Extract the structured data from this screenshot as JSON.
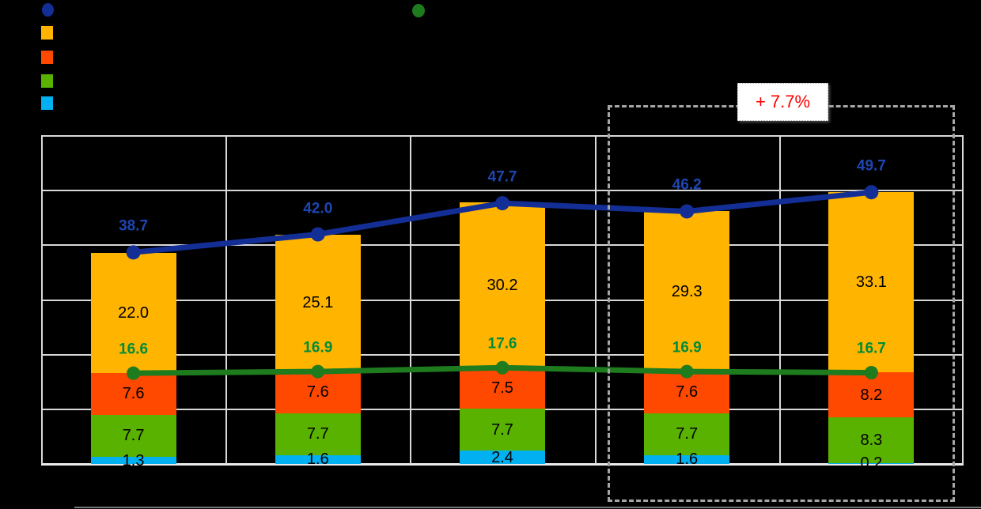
{
  "chart_data": {
    "type": "bar",
    "subtype": "stacked-bars-with-line-overlays",
    "categories": [
      "",
      "",
      "",
      "",
      ""
    ],
    "stack_series": [
      {
        "name": "segment-bottom-cyan",
        "color": "#00B0F0",
        "values": [
          1.3,
          1.6,
          2.4,
          1.6,
          0.2
        ]
      },
      {
        "name": "segment-green",
        "color": "#59B200",
        "values": [
          7.7,
          7.7,
          7.7,
          7.7,
          8.3
        ]
      },
      {
        "name": "segment-red",
        "color": "#FF4800",
        "values": [
          7.6,
          7.6,
          7.5,
          7.6,
          8.2
        ]
      },
      {
        "name": "segment-top-amber",
        "color": "#FFB400",
        "values": [
          22.0,
          25.1,
          30.2,
          29.3,
          33.1
        ]
      }
    ],
    "line_series": [
      {
        "name": "total-line-blue",
        "color": "#132F96",
        "label_color": "#1E46B2",
        "marker_radius": 9,
        "values": [
          38.7,
          42.0,
          47.7,
          46.2,
          49.7
        ]
      },
      {
        "name": "subtotal-line-green",
        "color": "#1E7B1E",
        "label_color": "#008C3A",
        "marker_radius": 8.5,
        "values": [
          16.6,
          16.9,
          17.6,
          16.9,
          16.7
        ]
      }
    ],
    "ylim": [
      0,
      60
    ],
    "grid_step": 10,
    "grid": true,
    "axis_tick_labels_visible": false,
    "annotation": {
      "text": "+ 7.7%",
      "color": "#FF0000"
    },
    "highlight": {
      "type": "dashed-box",
      "covers_categories": [
        4,
        5
      ],
      "color": "#A6A6A6"
    },
    "legend": {
      "position": "top-left",
      "entries": [
        {
          "marker": "circle",
          "color": "#132F96",
          "label": ""
        },
        {
          "marker": "square",
          "color": "#FFB400",
          "label": ""
        },
        {
          "marker": "square",
          "color": "#FF4800",
          "label": ""
        },
        {
          "marker": "square",
          "color": "#59B200",
          "label": ""
        },
        {
          "marker": "square",
          "color": "#00B0F0",
          "label": ""
        }
      ],
      "secondary_entry": {
        "marker": "circle",
        "color": "#1E7B1E",
        "label": "",
        "position": "top-center"
      }
    },
    "colors": {
      "background": "#000000",
      "gridline": "#D9D9D9",
      "baseline": "#ECECEC",
      "dashed_box": "#A6A6A6",
      "annotation_text": "#FF0000",
      "annotation_fill": "#FFFFFF"
    }
  }
}
